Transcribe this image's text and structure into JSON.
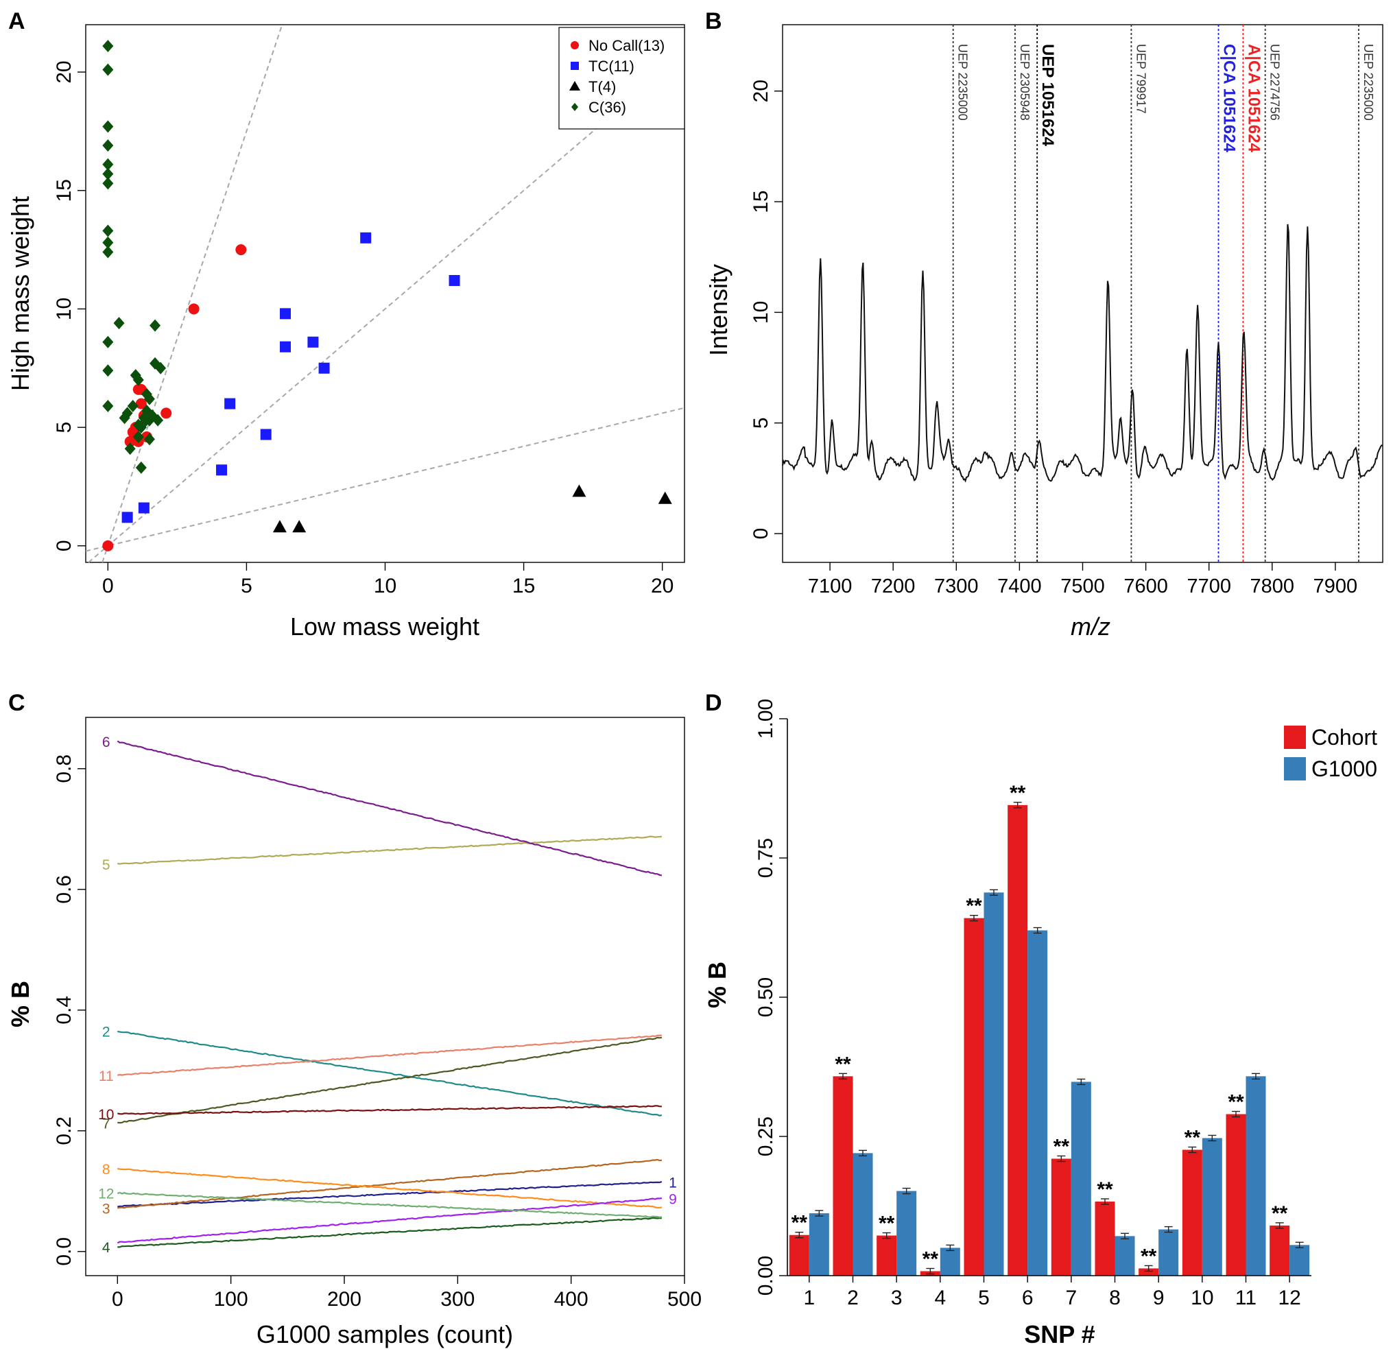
{
  "chart_data": [
    {
      "panel": "A",
      "type": "scatter",
      "xlabel": "Low mass weight",
      "ylabel": "High mass weight",
      "xlim": [
        -0.8,
        20.8
      ],
      "ylim": [
        -0.7,
        22
      ],
      "xticks": [
        0,
        5,
        10,
        15,
        20
      ],
      "yticks": [
        0,
        5,
        10,
        15,
        20
      ],
      "ref_lines": [
        {
          "slope": 3.5
        },
        {
          "slope": 1.0
        },
        {
          "slope": 0.28
        }
      ],
      "legend": {
        "position": "top-right",
        "entries": [
          "No Call(13)",
          "TC(11)",
          "T(4)",
          "C(36)"
        ]
      },
      "series": [
        {
          "name": "No Call(13)",
          "marker": "circle",
          "color": "#ee1111",
          "points": [
            [
              0,
              0
            ],
            [
              0.8,
              4.4
            ],
            [
              1.1,
              4.4
            ],
            [
              1.1,
              6.6
            ],
            [
              1.2,
              6.6
            ],
            [
              1.2,
              6.0
            ],
            [
              1.3,
              5.5
            ],
            [
              2.1,
              5.6
            ],
            [
              3.1,
              10.0
            ],
            [
              4.8,
              12.5
            ],
            [
              1.0,
              5.0
            ],
            [
              1.4,
              4.6
            ],
            [
              0.9,
              4.8
            ]
          ]
        },
        {
          "name": "TC(11)",
          "marker": "square",
          "color": "#1a1aff",
          "points": [
            [
              0.7,
              1.2
            ],
            [
              1.3,
              1.6
            ],
            [
              4.1,
              3.2
            ],
            [
              4.4,
              6.0
            ],
            [
              5.7,
              4.7
            ],
            [
              6.4,
              8.4
            ],
            [
              6.4,
              9.8
            ],
            [
              7.4,
              8.6
            ],
            [
              7.8,
              7.5
            ],
            [
              9.3,
              13.0
            ],
            [
              12.5,
              11.2
            ]
          ]
        },
        {
          "name": "T(4)",
          "marker": "triangle",
          "color": "#000000",
          "points": [
            [
              6.2,
              0.8
            ],
            [
              6.9,
              0.8
            ],
            [
              17.0,
              2.3
            ],
            [
              20.1,
              2.0
            ]
          ]
        },
        {
          "name": "C(36)",
          "marker": "diamond",
          "color": "#0a4f0a",
          "points": [
            [
              0,
              21.1
            ],
            [
              0,
              20.1
            ],
            [
              0,
              17.7
            ],
            [
              0,
              16.9
            ],
            [
              0,
              16.1
            ],
            [
              0,
              15.7
            ],
            [
              0,
              15.3
            ],
            [
              0,
              13.3
            ],
            [
              0,
              12.8
            ],
            [
              0,
              12.4
            ],
            [
              0,
              8.6
            ],
            [
              0,
              7.4
            ],
            [
              0,
              5.9
            ],
            [
              0.4,
              9.4
            ],
            [
              0.7,
              5.6
            ],
            [
              0.8,
              4.1
            ],
            [
              0.9,
              5.9
            ],
            [
              1.0,
              7.2
            ],
            [
              1.1,
              7.0
            ],
            [
              1.1,
              5.1
            ],
            [
              1.1,
              4.6
            ],
            [
              1.2,
              3.3
            ],
            [
              1.3,
              5.4
            ],
            [
              1.3,
              5.2
            ],
            [
              1.4,
              5.7
            ],
            [
              1.4,
              6.4
            ],
            [
              1.5,
              5.3
            ],
            [
              1.5,
              4.5
            ],
            [
              1.5,
              6.2
            ],
            [
              1.6,
              5.5
            ],
            [
              1.7,
              7.7
            ],
            [
              1.7,
              9.3
            ],
            [
              1.8,
              5.3
            ],
            [
              1.9,
              7.5
            ],
            [
              1.2,
              5.0
            ],
            [
              0.6,
              5.4
            ]
          ]
        }
      ]
    },
    {
      "panel": "B",
      "type": "line",
      "xlabel": "m/z",
      "ylabel": "Intensity",
      "xlim": [
        7025,
        7975
      ],
      "ylim": [
        -1.3,
        23
      ],
      "xticks": [
        7100,
        7200,
        7300,
        7400,
        7500,
        7600,
        7700,
        7800,
        7900
      ],
      "yticks": [
        0,
        5,
        10,
        15,
        20
      ],
      "baseline": 3.0,
      "peaks": [
        {
          "x": 7085,
          "h": 9.2
        },
        {
          "x": 7103,
          "h": 2.6
        },
        {
          "x": 7152,
          "h": 9.6
        },
        {
          "x": 7166,
          "h": 1.2
        },
        {
          "x": 7247,
          "h": 8.9
        },
        {
          "x": 7269,
          "h": 2.6
        },
        {
          "x": 7288,
          "h": 1.4
        },
        {
          "x": 7345,
          "h": 0.5
        },
        {
          "x": 7388,
          "h": 0.8
        },
        {
          "x": 7431,
          "h": 1.2
        },
        {
          "x": 7540,
          "h": 8.2
        },
        {
          "x": 7560,
          "h": 2.2
        },
        {
          "x": 7579,
          "h": 3.8
        },
        {
          "x": 7598,
          "h": 0.9
        },
        {
          "x": 7665,
          "h": 5.8
        },
        {
          "x": 7682,
          "h": 6.8
        },
        {
          "x": 7715,
          "h": 6.0
        },
        {
          "x": 7755,
          "h": 5.8
        },
        {
          "x": 7787,
          "h": 0.8
        },
        {
          "x": 7825,
          "h": 11.0
        },
        {
          "x": 7856,
          "h": 11.5
        },
        {
          "x": 7933,
          "h": 1.0
        }
      ],
      "markers": [
        {
          "x": 7295,
          "label": "UEP 2235000",
          "color": "#333333",
          "bold": false
        },
        {
          "x": 7393,
          "label": "UEP 2305948",
          "color": "#333333",
          "bold": false
        },
        {
          "x": 7428,
          "label": "UEP 1051624",
          "color": "#000000",
          "bold": true
        },
        {
          "x": 7577,
          "label": "UEP 799917",
          "color": "#333333",
          "bold": false
        },
        {
          "x": 7715,
          "label": "C|CA 1051624",
          "color": "#2222dd",
          "bold": true
        },
        {
          "x": 7754,
          "label": "A|CA 1051624",
          "color": "#ee2222",
          "bold": true
        },
        {
          "x": 7789,
          "label": "UEP 2274756",
          "color": "#333333",
          "bold": false
        },
        {
          "x": 7937,
          "label": "UEP 2235000",
          "color": "#333333",
          "bold": false
        }
      ]
    },
    {
      "panel": "C",
      "type": "line",
      "xlabel": "G1000 samples (count)",
      "ylabel": "% B",
      "xlim": [
        -28,
        500
      ],
      "ylim": [
        -0.04,
        0.885
      ],
      "xticks": [
        0,
        100,
        200,
        300,
        400,
        500
      ],
      "yticks": [
        0.0,
        0.2,
        0.4,
        0.6,
        0.8
      ],
      "x_end": 480,
      "series": [
        {
          "name": "1",
          "start": 0.075,
          "end": 0.115,
          "color": "#1f1f8f",
          "label_side": "right"
        },
        {
          "name": "2",
          "start": 0.365,
          "end": 0.225,
          "color": "#1f8a8a",
          "label_side": "left"
        },
        {
          "name": "3",
          "start": 0.072,
          "end": 0.152,
          "color": "#b5651d",
          "label_side": "left"
        },
        {
          "name": "4",
          "start": 0.008,
          "end": 0.056,
          "color": "#1a5c1a",
          "label_side": "left"
        },
        {
          "name": "5",
          "start": 0.642,
          "end": 0.688,
          "color": "#b0aa55",
          "label_side": "left"
        },
        {
          "name": "6",
          "start": 0.845,
          "end": 0.623,
          "color": "#7b1c8c",
          "label_side": "left"
        },
        {
          "name": "7",
          "start": 0.213,
          "end": 0.355,
          "color": "#4a5a23",
          "label_side": "left"
        },
        {
          "name": "8",
          "start": 0.137,
          "end": 0.073,
          "color": "#ff8c1a",
          "label_side": "left"
        },
        {
          "name": "9",
          "start": 0.015,
          "end": 0.088,
          "color": "#a020f0",
          "label_side": "right"
        },
        {
          "name": "10",
          "start": 0.228,
          "end": 0.241,
          "color": "#7a1010",
          "label_side": "left"
        },
        {
          "name": "11",
          "start": 0.292,
          "end": 0.358,
          "color": "#e8806a",
          "label_side": "left"
        },
        {
          "name": "12",
          "start": 0.097,
          "end": 0.057,
          "color": "#6fae6f",
          "label_side": "left"
        }
      ]
    },
    {
      "panel": "D",
      "type": "bar",
      "xlabel": "SNP #",
      "ylabel": "% B",
      "ylim": [
        0,
        1.0
      ],
      "yticks": [
        "0.00",
        "0.25",
        "0.50",
        "0.75",
        "1.00"
      ],
      "categories": [
        "1",
        "2",
        "3",
        "4",
        "5",
        "6",
        "7",
        "8",
        "9",
        "10",
        "11",
        "12"
      ],
      "legend": {
        "position": "top-right",
        "entries": [
          "Cohort",
          "G1000"
        ]
      },
      "series": [
        {
          "name": "Cohort",
          "color": "#e41a1c",
          "values": [
            0.073,
            0.358,
            0.072,
            0.008,
            0.642,
            0.845,
            0.21,
            0.133,
            0.013,
            0.226,
            0.29,
            0.09
          ]
        },
        {
          "name": "G1000",
          "color": "#377eb8",
          "values": [
            0.112,
            0.22,
            0.152,
            0.05,
            0.688,
            0.62,
            0.348,
            0.071,
            0.083,
            0.247,
            0.358,
            0.055
          ]
        }
      ],
      "significance": [
        "**",
        "**",
        "**",
        "**",
        "**",
        "**",
        "**",
        "**",
        "**",
        "**",
        "**",
        "**"
      ]
    }
  ],
  "panel_labels": [
    "A",
    "B",
    "C",
    "D"
  ]
}
